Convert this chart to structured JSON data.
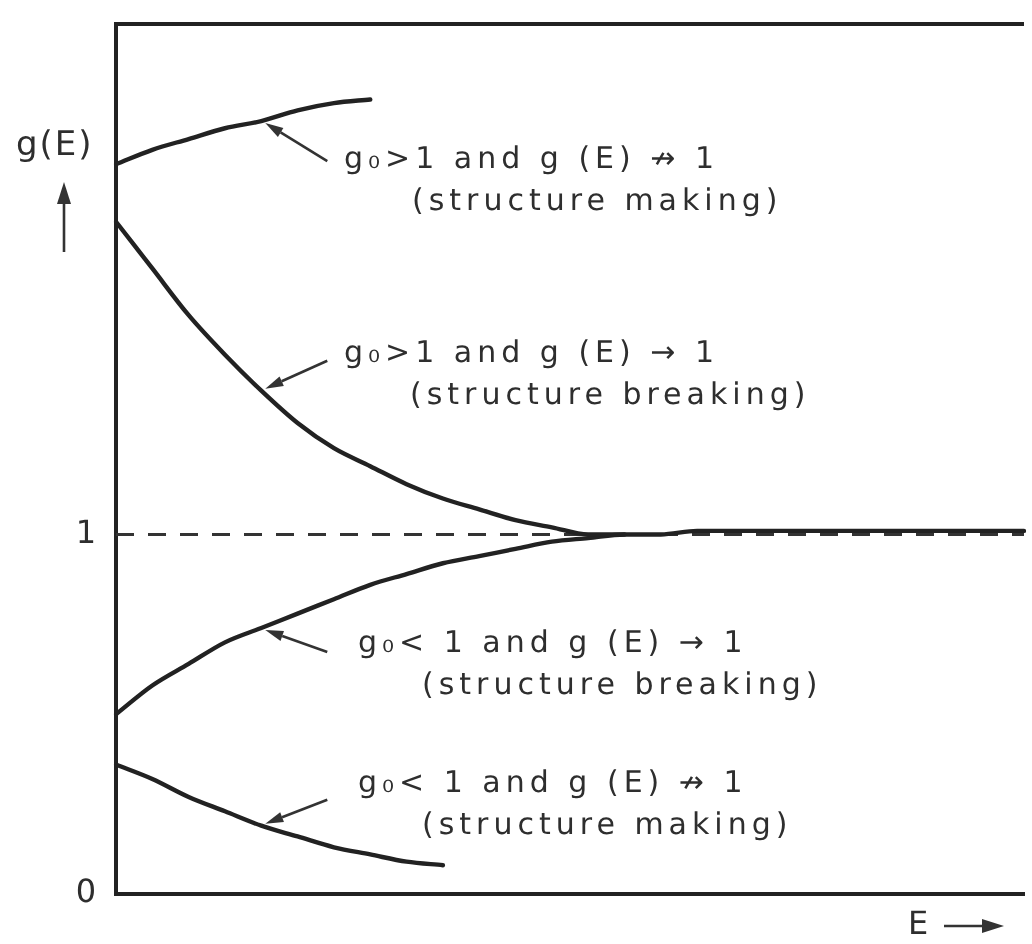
{
  "chart_data": {
    "type": "line",
    "xlabel": "E",
    "ylabel": "g(E)",
    "categories": [
      null,
      null,
      null,
      null,
      null,
      null,
      null,
      null,
      null,
      null,
      null,
      null,
      null,
      null,
      null,
      null,
      null,
      null,
      null,
      null,
      null,
      null,
      null,
      null,
      null,
      null
    ],
    "ylim": [
      0,
      2.42
    ],
    "yticks": [
      0,
      1
    ],
    "tick_labels": "y",
    "grid": false,
    "legend": false,
    "marker": "none",
    "ref_lines": [
      {
        "axis": "y",
        "value": 1,
        "line_style": "dashed"
      }
    ],
    "annotations": [
      "g₀>1 and g (E) ↛ 1\n(structure making)",
      "g₀>1 and g (E) → 1\n(structure breaking)",
      "g₀< 1 and g (E) → 1\n(structure breaking)",
      "g₀< 1 and g (E) ↛ 1\n(structure making)"
    ],
    "series": [
      {
        "color": "#222222",
        "values": [
          2.03,
          2.07,
          2.1,
          2.13,
          2.15,
          2.18,
          2.2,
          2.21,
          null,
          null,
          null,
          null,
          null,
          null,
          null,
          null,
          null,
          null,
          null,
          null,
          null,
          null,
          null,
          null,
          null,
          null
        ]
      },
      {
        "color": "#222222",
        "values": [
          1.87,
          1.74,
          1.61,
          1.5,
          1.4,
          1.31,
          1.24,
          1.19,
          1.14,
          1.1,
          1.07,
          1.04,
          1.02,
          1.0,
          1.0,
          null,
          null,
          null,
          null,
          null,
          null,
          null,
          null,
          null,
          null,
          null
        ]
      },
      {
        "color": "#222222",
        "values": [
          0.5,
          0.58,
          0.64,
          0.7,
          0.74,
          0.78,
          0.82,
          0.86,
          0.89,
          0.92,
          0.94,
          0.96,
          0.98,
          0.99,
          1.0,
          1.0,
          1.01,
          1.01,
          1.01,
          1.01,
          1.01,
          1.01,
          1.01,
          1.01,
          1.01,
          1.01
        ]
      },
      {
        "color": "#222222",
        "values": [
          0.36,
          0.32,
          0.27,
          0.23,
          0.19,
          0.16,
          0.13,
          0.11,
          0.09,
          0.08,
          null,
          null,
          null,
          null,
          null,
          null,
          null,
          null,
          null,
          null,
          null,
          null,
          null,
          null,
          null,
          null
        ]
      }
    ]
  }
}
